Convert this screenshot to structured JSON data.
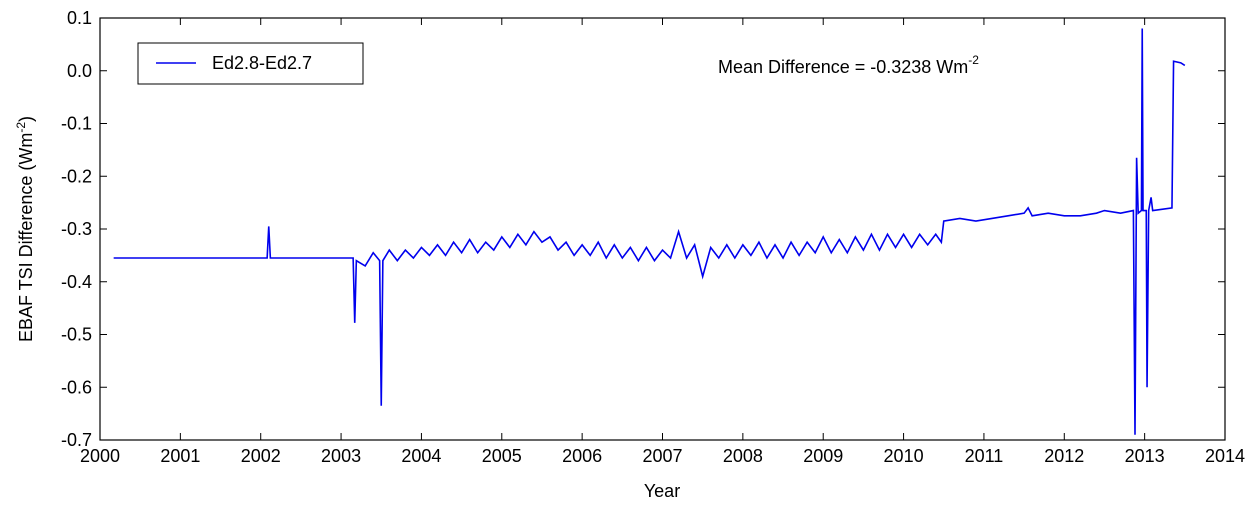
{
  "chart_data": {
    "type": "line",
    "xlabel": "Year",
    "ylabel": [
      "EBAF TSI Difference (Wm",
      "-2",
      ")"
    ],
    "annotation": [
      "Mean Difference = -0.3238 Wm",
      "-2"
    ],
    "xlim": [
      2000,
      2014
    ],
    "ylim": [
      -0.7,
      0.1
    ],
    "xticks": [
      2000,
      2001,
      2002,
      2003,
      2004,
      2005,
      2006,
      2007,
      2008,
      2009,
      2010,
      2011,
      2012,
      2013,
      2014
    ],
    "yticks": [
      -0.7,
      -0.6,
      -0.5,
      -0.4,
      -0.3,
      -0.2,
      -0.1,
      {
        "value": 0,
        "label": "0.0"
      },
      0.1
    ],
    "legend": "upper left",
    "series": [
      {
        "name": "Ed2.8-Ed2.7",
        "color": "#0000ee",
        "x": [
          2000.17,
          2002.08,
          2002.1,
          2002.12,
          2003.15,
          2003.17,
          2003.19,
          2003.3,
          2003.4,
          2003.48,
          2003.5,
          2003.52,
          2003.6,
          2003.7,
          2003.8,
          2003.9,
          2004.0,
          2004.1,
          2004.2,
          2004.3,
          2004.4,
          2004.5,
          2004.6,
          2004.7,
          2004.8,
          2004.9,
          2005.0,
          2005.1,
          2005.2,
          2005.3,
          2005.4,
          2005.5,
          2005.6,
          2005.7,
          2005.8,
          2005.9,
          2006.0,
          2006.1,
          2006.2,
          2006.3,
          2006.4,
          2006.5,
          2006.6,
          2006.7,
          2006.8,
          2006.9,
          2007.0,
          2007.1,
          2007.2,
          2007.3,
          2007.4,
          2007.5,
          2007.6,
          2007.7,
          2007.8,
          2007.9,
          2008.0,
          2008.1,
          2008.2,
          2008.3,
          2008.4,
          2008.5,
          2008.6,
          2008.7,
          2008.8,
          2008.9,
          2009.0,
          2009.1,
          2009.2,
          2009.3,
          2009.4,
          2009.5,
          2009.6,
          2009.7,
          2009.8,
          2009.9,
          2010.0,
          2010.1,
          2010.2,
          2010.3,
          2010.4,
          2010.47,
          2010.5,
          2010.7,
          2010.9,
          2011.1,
          2011.3,
          2011.5,
          2011.55,
          2011.6,
          2011.8,
          2012.0,
          2012.2,
          2012.4,
          2012.5,
          2012.7,
          2012.86,
          2012.88,
          2012.9,
          2012.92,
          2012.96,
          2012.97,
          2012.98,
          2013.02,
          2013.03,
          2013.05,
          2013.08,
          2013.1,
          2013.34,
          2013.36,
          2013.45,
          2013.5
        ],
        "values": [
          -0.355,
          -0.355,
          -0.295,
          -0.355,
          -0.355,
          -0.478,
          -0.36,
          -0.37,
          -0.345,
          -0.36,
          -0.635,
          -0.36,
          -0.34,
          -0.36,
          -0.34,
          -0.355,
          -0.335,
          -0.35,
          -0.33,
          -0.35,
          -0.325,
          -0.345,
          -0.32,
          -0.345,
          -0.325,
          -0.34,
          -0.315,
          -0.335,
          -0.31,
          -0.33,
          -0.305,
          -0.325,
          -0.315,
          -0.34,
          -0.325,
          -0.35,
          -0.33,
          -0.35,
          -0.325,
          -0.355,
          -0.33,
          -0.355,
          -0.335,
          -0.36,
          -0.335,
          -0.36,
          -0.34,
          -0.355,
          -0.305,
          -0.355,
          -0.33,
          -0.39,
          -0.335,
          -0.355,
          -0.33,
          -0.355,
          -0.33,
          -0.35,
          -0.325,
          -0.355,
          -0.33,
          -0.355,
          -0.325,
          -0.35,
          -0.325,
          -0.345,
          -0.315,
          -0.345,
          -0.32,
          -0.345,
          -0.315,
          -0.34,
          -0.31,
          -0.34,
          -0.31,
          -0.335,
          -0.31,
          -0.335,
          -0.31,
          -0.33,
          -0.31,
          -0.325,
          -0.285,
          -0.28,
          -0.285,
          -0.28,
          -0.275,
          -0.27,
          -0.26,
          -0.275,
          -0.27,
          -0.275,
          -0.275,
          -0.27,
          -0.265,
          -0.27,
          -0.265,
          -0.69,
          -0.165,
          -0.27,
          -0.265,
          0.08,
          -0.265,
          -0.265,
          -0.6,
          -0.265,
          -0.24,
          -0.265,
          -0.26,
          0.018,
          0.015,
          0.01
        ]
      }
    ]
  }
}
